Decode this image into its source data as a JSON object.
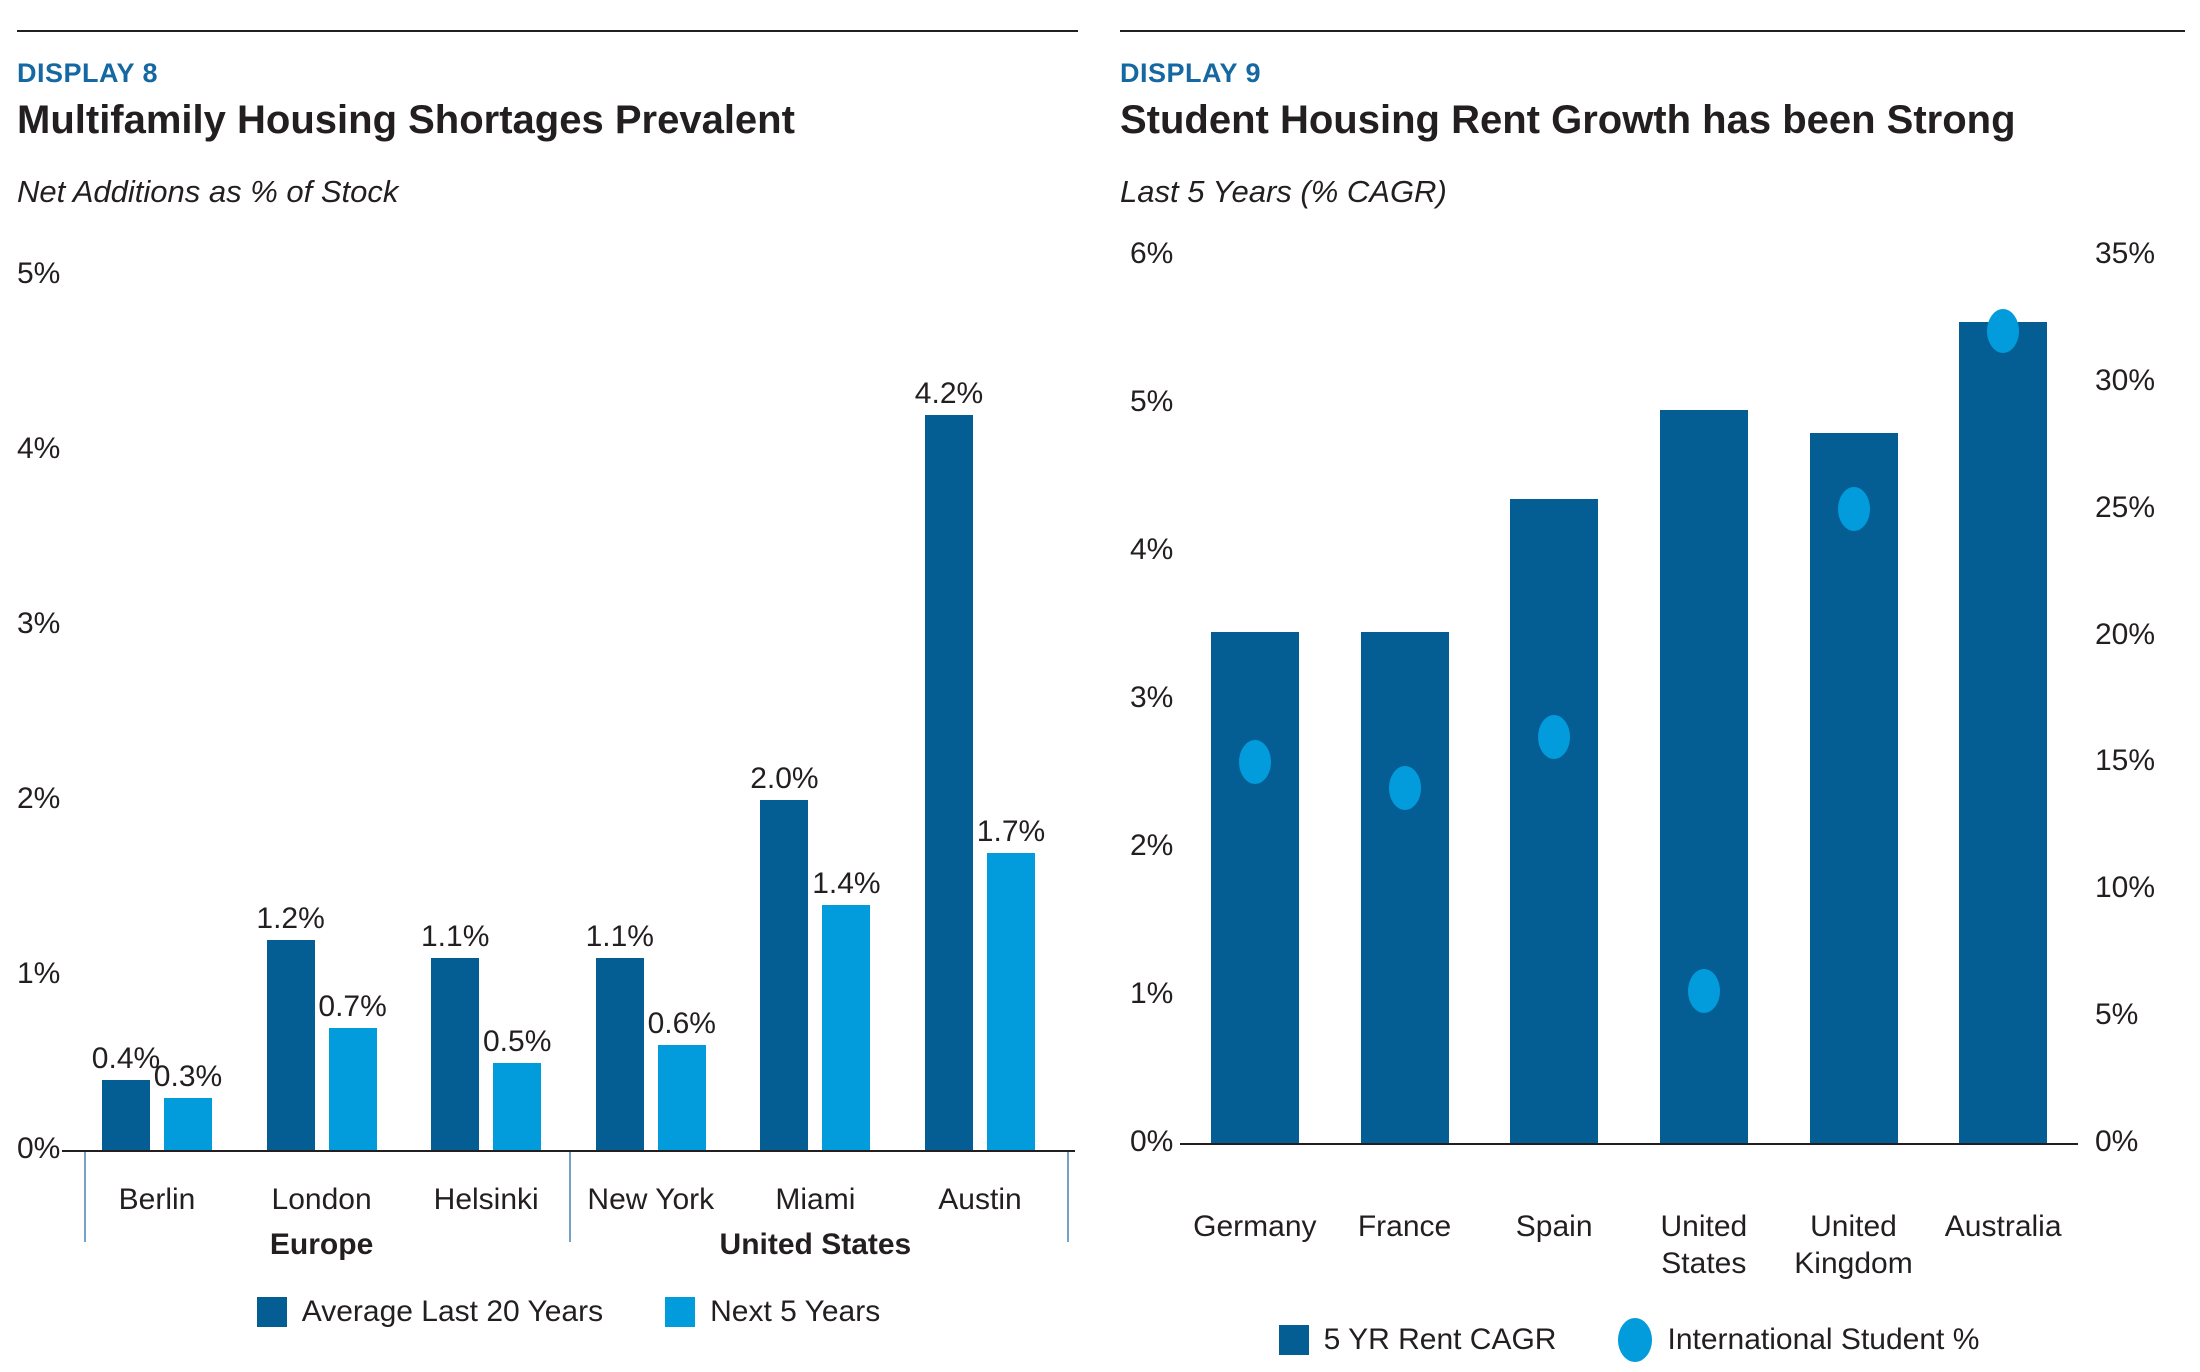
{
  "colors": {
    "dark_blue": "#045E94",
    "light_blue": "#029CDD",
    "display_label_blue": "#1568A2",
    "bracket_blue": "#74A3C7",
    "text": "#231F20",
    "axis": "#231F20"
  },
  "chart_data": [
    {
      "type": "bar",
      "display": "DISPLAY 8",
      "title": "Multifamily Housing Shortages Prevalent",
      "subtitle": "Net Additions as % of Stock",
      "categories": [
        "Berlin",
        "London",
        "Helsinki",
        "New York",
        "Miami",
        "Austin"
      ],
      "groups": [
        {
          "label": "Europe",
          "span": [
            0,
            2
          ]
        },
        {
          "label": "United States",
          "span": [
            3,
            5
          ]
        }
      ],
      "series": [
        {
          "name": "Average Last 20 Years",
          "color": "#045E94",
          "values": [
            0.4,
            1.2,
            1.1,
            1.1,
            2.0,
            4.2
          ],
          "value_labels": [
            "0.4%",
            "1.2%",
            "1.1%",
            "1.1%",
            "2.0%",
            "4.2%"
          ]
        },
        {
          "name": "Next 5 Years",
          "color": "#029CDD",
          "values": [
            0.3,
            0.7,
            0.5,
            0.6,
            1.4,
            1.7
          ],
          "value_labels": [
            "0.3%",
            "0.7%",
            "0.5%",
            "0.6%",
            "1.4%",
            "1.7%"
          ]
        }
      ],
      "ylim": [
        0,
        5
      ],
      "yticks": [
        {
          "v": 5,
          "label": "5%"
        },
        {
          "v": 4,
          "label": "4%"
        },
        {
          "v": 3,
          "label": "3%"
        },
        {
          "v": 2,
          "label": "2%"
        },
        {
          "v": 1,
          "label": "1%"
        },
        {
          "v": 0,
          "label": "0%"
        }
      ],
      "grid": false,
      "legend_position": "bottom"
    },
    {
      "type": "bar+scatter",
      "display": "DISPLAY 9",
      "title": "Student Housing Rent Growth has been Strong",
      "subtitle": "Last 5 Years (% CAGR)",
      "categories": [
        "Germany",
        "France",
        "Spain",
        "United\nStates",
        "United\nKingdom",
        "Australia"
      ],
      "bar_series": {
        "name": "5 YR Rent CAGR",
        "axis": "left",
        "color": "#045E94",
        "values": [
          3.45,
          3.45,
          4.35,
          4.95,
          4.8,
          5.55
        ]
      },
      "dot_series": {
        "name": "International Student %",
        "axis": "right",
        "color": "#029CDD",
        "values": [
          15,
          14,
          16,
          6,
          25,
          32
        ]
      },
      "left_ylim": [
        0,
        6
      ],
      "right_ylim": [
        0,
        35
      ],
      "left_yticks": [
        {
          "v": 6,
          "label": "6%"
        },
        {
          "v": 5,
          "label": "5%"
        },
        {
          "v": 4,
          "label": "4%"
        },
        {
          "v": 3,
          "label": "3%"
        },
        {
          "v": 2,
          "label": "2%"
        },
        {
          "v": 1,
          "label": "1%"
        },
        {
          "v": 0,
          "label": "0%"
        }
      ],
      "right_yticks": [
        {
          "v": 35,
          "label": "35%"
        },
        {
          "v": 30,
          "label": "30%"
        },
        {
          "v": 25,
          "label": "25%"
        },
        {
          "v": 20,
          "label": "20%"
        },
        {
          "v": 15,
          "label": "15%"
        },
        {
          "v": 10,
          "label": "10%"
        },
        {
          "v": 5,
          "label": "5%"
        },
        {
          "v": 0,
          "label": "0%"
        }
      ],
      "grid": false,
      "legend_position": "bottom"
    }
  ]
}
